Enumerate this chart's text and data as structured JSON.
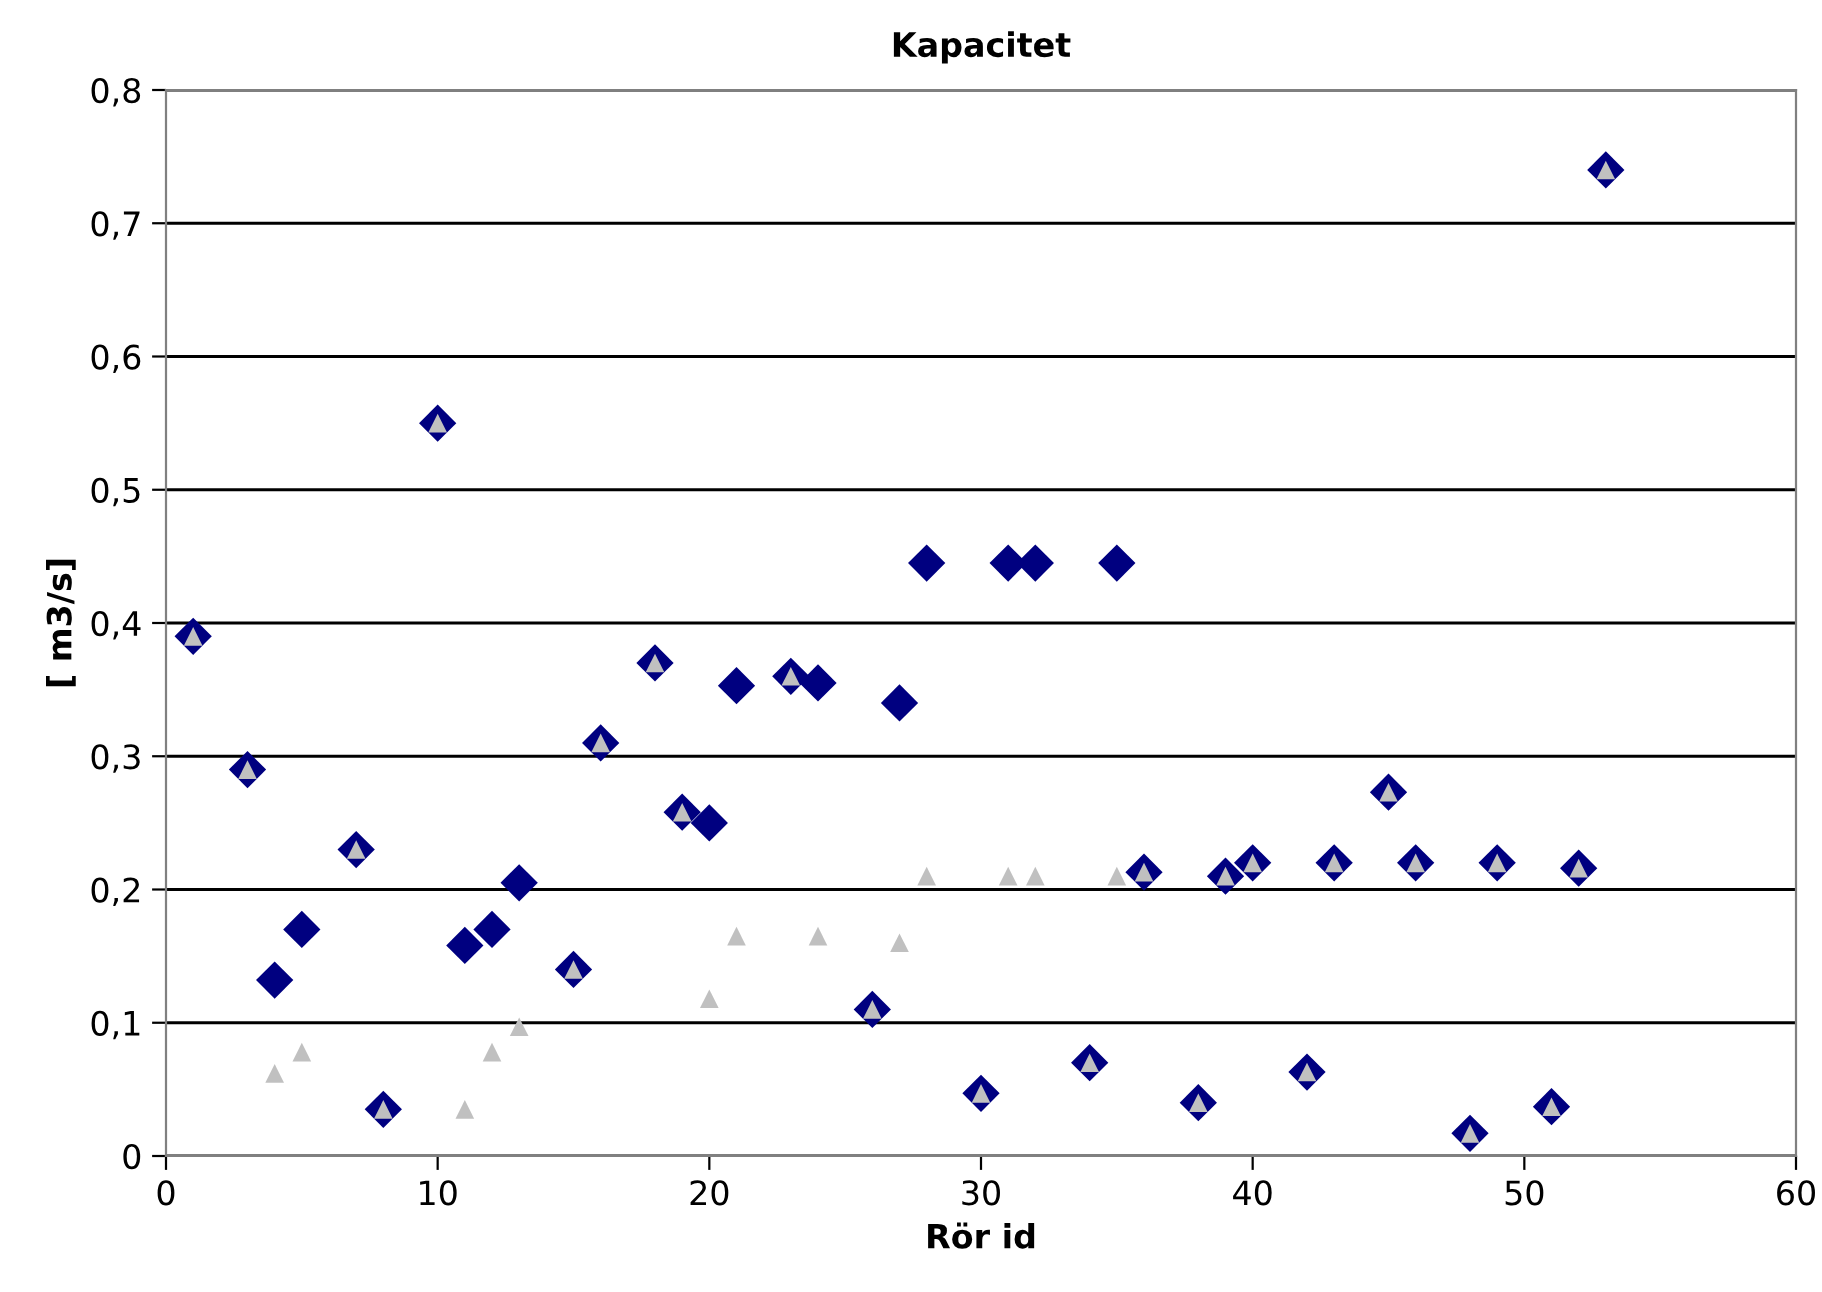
{
  "chart_data": {
    "type": "scatter",
    "title": "Kapacitet",
    "xlabel": "Rör id",
    "ylabel": "[ m3/s]",
    "xlim": [
      0,
      60
    ],
    "xticks": [
      0,
      10,
      20,
      30,
      40,
      50,
      60
    ],
    "ylim": [
      0,
      0.8
    ],
    "yticks": [
      {
        "value": 0,
        "label": "0"
      },
      {
        "value": 0.1,
        "label": "0,1"
      },
      {
        "value": 0.2,
        "label": "0,2"
      },
      {
        "value": 0.3,
        "label": "0,3"
      },
      {
        "value": 0.4,
        "label": "0,4"
      },
      {
        "value": 0.5,
        "label": "0,5"
      },
      {
        "value": 0.6,
        "label": "0,6"
      },
      {
        "value": 0.7,
        "label": "0,7"
      },
      {
        "value": 0.8,
        "label": "0,8"
      }
    ],
    "grid": "y",
    "series": [
      {
        "color": "#000080",
        "marker": "diamond",
        "x": [
          1,
          3,
          4,
          5,
          7,
          8,
          10,
          11,
          12,
          13,
          15,
          16,
          18,
          19,
          20,
          21,
          23,
          24,
          26,
          27,
          28,
          30,
          31,
          32,
          34,
          35,
          36,
          38,
          39,
          40,
          42,
          43,
          45,
          46,
          48,
          49,
          51,
          52,
          53
        ],
        "values": [
          0.39,
          0.29,
          0.132,
          0.17,
          0.23,
          0.035,
          0.55,
          0.158,
          0.17,
          0.205,
          0.14,
          0.31,
          0.37,
          0.258,
          0.25,
          0.353,
          0.36,
          0.355,
          0.11,
          0.34,
          0.445,
          0.047,
          0.445,
          0.445,
          0.07,
          0.445,
          0.213,
          0.04,
          0.21,
          0.22,
          0.063,
          0.22,
          0.273,
          0.22,
          0.017,
          0.22,
          0.037,
          0.216,
          0.74
        ]
      },
      {
        "color": "#c0c0c0",
        "marker": "triangle",
        "x": [
          1,
          3,
          4,
          5,
          7,
          8,
          10,
          11,
          12,
          13,
          15,
          16,
          18,
          19,
          20,
          21,
          23,
          24,
          26,
          27,
          28,
          30,
          31,
          32,
          34,
          35,
          36,
          38,
          39,
          40,
          42,
          43,
          45,
          46,
          48,
          49,
          51,
          52,
          53
        ],
        "values": [
          0.39,
          0.29,
          0.062,
          0.078,
          0.23,
          0.035,
          0.55,
          0.035,
          0.078,
          0.097,
          0.14,
          0.31,
          0.37,
          0.258,
          0.118,
          0.165,
          0.36,
          0.165,
          0.11,
          0.16,
          0.21,
          0.047,
          0.21,
          0.21,
          0.07,
          0.21,
          0.213,
          0.04,
          0.21,
          0.22,
          0.063,
          0.22,
          0.273,
          0.22,
          0.017,
          0.22,
          0.037,
          0.216,
          0.74
        ]
      }
    ]
  }
}
